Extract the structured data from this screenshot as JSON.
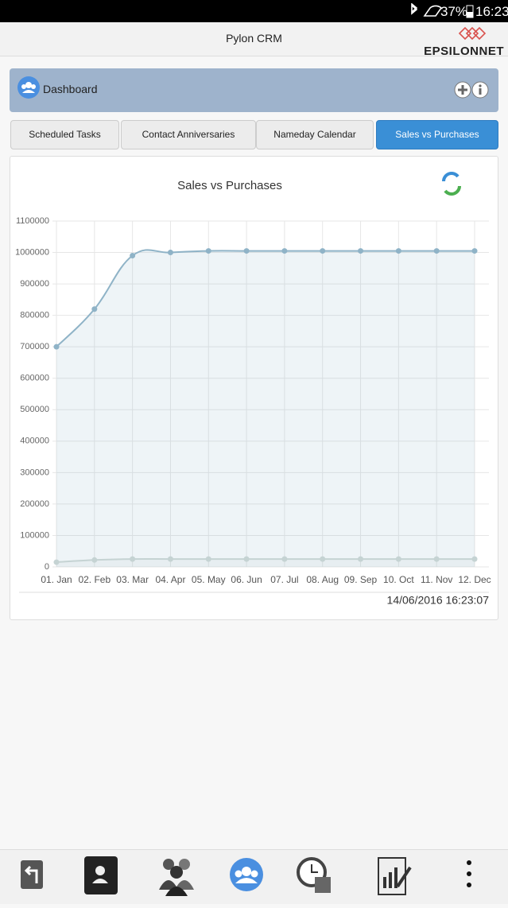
{
  "status_bar": {
    "battery": "37%",
    "time": "16:23"
  },
  "header": {
    "title": "Pylon CRM",
    "logo": "EPSILONNET"
  },
  "panel": {
    "title": "Dashboard"
  },
  "tabs": [
    "Scheduled Tasks",
    "Contact Anniversaries",
    "Nameday Calendar",
    "Sales vs Purchases"
  ],
  "chart_data": {
    "type": "line",
    "title": "Sales vs Purchases",
    "categories": [
      "01. Jan",
      "02. Feb",
      "03. Mar",
      "04. Apr",
      "05. May",
      "06. Jun",
      "07. Jul",
      "08. Aug",
      "09. Sep",
      "10. Oct",
      "11. Nov",
      "12. Dec"
    ],
    "series": [
      {
        "color": "#8fb3c7",
        "values": [
          700000,
          820000,
          990000,
          1000000,
          1005000,
          1005000,
          1005000,
          1005000,
          1005000,
          1005000,
          1005000,
          1005000
        ]
      },
      {
        "color": "#c5d3d3",
        "values": [
          15000,
          22000,
          25000,
          25000,
          25000,
          25000,
          25000,
          25000,
          25000,
          25000,
          25000,
          25000
        ]
      }
    ],
    "ylim": [
      0,
      1100000
    ],
    "yticks": [
      0,
      100000,
      200000,
      300000,
      400000,
      500000,
      600000,
      700000,
      800000,
      900000,
      1000000,
      1100000
    ],
    "grid": true
  },
  "timestamp": "14/06/2016 16:23:07"
}
